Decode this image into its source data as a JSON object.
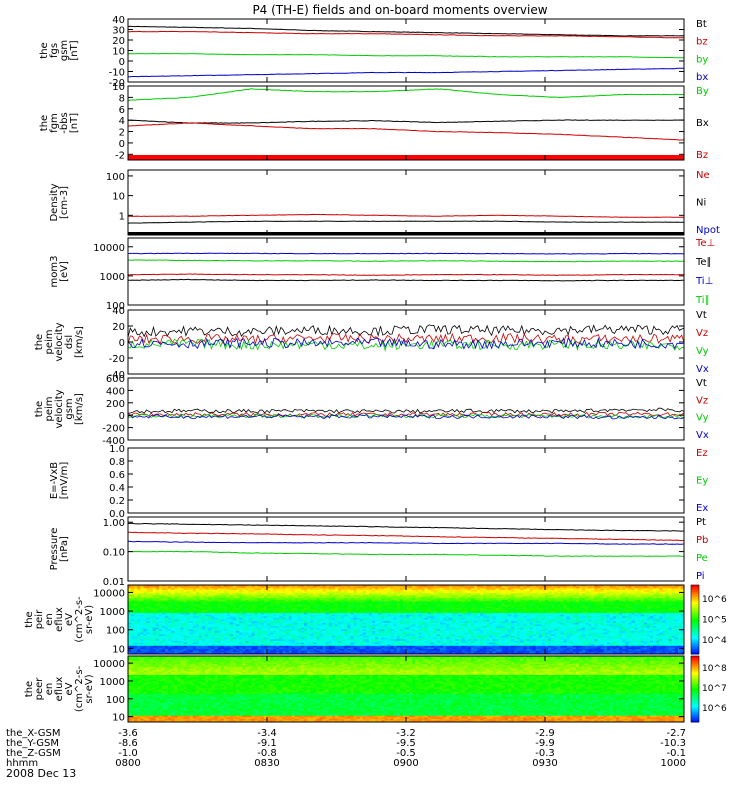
{
  "title": "P4 (TH-E) fields and on-board moments overview",
  "date_label": "2008 Dec 13",
  "chart_data": [
    {
      "type": "line",
      "ylabel": [
        "the",
        "fgs",
        "gsm",
        "[nT]"
      ],
      "ylim": [
        -20,
        40
      ],
      "ticks": [
        "-20",
        "-10",
        "0",
        "10",
        "20",
        "30",
        "40"
      ],
      "series": [
        {
          "name": "Bt",
          "color": "#000000",
          "values": [
            33,
            32,
            31,
            29,
            28,
            27,
            26,
            25,
            24,
            24
          ]
        },
        {
          "name": "bz",
          "color": "#cc0000",
          "values": [
            28,
            28,
            27,
            26,
            26,
            25,
            24,
            24,
            23,
            22
          ]
        },
        {
          "name": "by",
          "color": "#00cc00",
          "values": [
            7,
            7,
            6,
            6,
            5,
            5,
            4,
            4,
            4,
            3
          ]
        },
        {
          "name": "bx",
          "color": "#0000cc",
          "values": [
            -15,
            -14,
            -13,
            -12,
            -11,
            -11,
            -10,
            -9,
            -8,
            -7
          ]
        }
      ]
    },
    {
      "type": "line",
      "ylabel": [
        "the",
        "fgm",
        "-bbs",
        "[nT]"
      ],
      "ylim": [
        -3,
        10
      ],
      "ticks": [
        "-2",
        "0",
        "2",
        "4",
        "6",
        "8",
        "10"
      ],
      "series": [
        {
          "name": "By",
          "color": "#00cc00",
          "values": [
            7.5,
            8.0,
            9.5,
            9.0,
            9.0,
            9.5,
            8.5,
            8.0,
            8.5,
            8.5
          ]
        },
        {
          "name": "Bx",
          "color": "#000000",
          "values": [
            4.0,
            3.5,
            3.5,
            3.8,
            3.9,
            3.6,
            3.8,
            4.0,
            4.0,
            4.0
          ]
        },
        {
          "name": "Bz",
          "color": "#cc0000",
          "values": [
            3.0,
            3.5,
            3.0,
            2.5,
            2.5,
            2.0,
            1.8,
            1.5,
            1.0,
            0.5
          ]
        }
      ]
    },
    {
      "type": "line",
      "scale": "log",
      "ylabel": [
        "Density",
        "[cm-3]"
      ],
      "ylim": [
        0.1,
        200
      ],
      "ticks": [
        "1",
        "10",
        "100"
      ],
      "series": [
        {
          "name": "Ne",
          "color": "#cc0000",
          "values": [
            0.9,
            0.9,
            1.0,
            1.1,
            1.0,
            0.9,
            1.0,
            0.9,
            0.8,
            0.8
          ]
        },
        {
          "name": "Ni",
          "color": "#000000",
          "values": [
            0.4,
            0.45,
            0.5,
            0.5,
            0.5,
            0.5,
            0.5,
            0.45,
            0.45,
            0.45
          ]
        },
        {
          "name": "Npot",
          "color": "#0000cc",
          "values": [
            null,
            null,
            null,
            null,
            null,
            null,
            null,
            null,
            null,
            null
          ]
        }
      ]
    },
    {
      "type": "line",
      "scale": "log",
      "ylabel": [
        "mom3",
        "[eV]"
      ],
      "ylim": [
        100,
        20000
      ],
      "ticks": [
        "100",
        "1000",
        "10000"
      ],
      "series": [
        {
          "name": "Te⊥",
          "color": "#cc0000",
          "values": [
            1100,
            1150,
            1100,
            1100,
            1050,
            1100,
            1100,
            1050,
            1100,
            1100
          ]
        },
        {
          "name": "Te∥",
          "color": "#000000",
          "values": [
            700,
            750,
            700,
            700,
            720,
            700,
            700,
            680,
            700,
            700
          ]
        },
        {
          "name": "Ti⊥",
          "color": "#0000cc",
          "values": [
            5800,
            6000,
            5900,
            5800,
            5800,
            5900,
            5800,
            5700,
            5800,
            5800
          ]
        },
        {
          "name": "Ti∥",
          "color": "#00cc00",
          "values": [
            3500,
            3400,
            3300,
            3300,
            3200,
            3300,
            3200,
            3100,
            3200,
            3200
          ]
        }
      ]
    },
    {
      "type": "line",
      "ylabel": [
        "the",
        "peim",
        "velocity",
        "dsl",
        "[km/s]"
      ],
      "ylim": [
        -40,
        40
      ],
      "ticks": [
        "-40",
        "-20",
        "0",
        "20",
        "40"
      ],
      "series": [
        {
          "name": "Vt",
          "color": "#000000",
          "values": [
            12,
            14,
            13,
            15,
            14,
            16,
            14,
            15,
            16,
            15
          ]
        },
        {
          "name": "Vz",
          "color": "#cc0000",
          "values": [
            3,
            4,
            3,
            5,
            4,
            4,
            5,
            3,
            4,
            4
          ]
        },
        {
          "name": "Vy",
          "color": "#00cc00",
          "values": [
            -3,
            -2,
            -4,
            -3,
            -5,
            -3,
            -4,
            -3,
            -5,
            -4
          ]
        },
        {
          "name": "Vx",
          "color": "#0000cc",
          "values": [
            -1,
            -2,
            -1,
            -2,
            -1,
            -3,
            -2,
            -1,
            -2,
            -2
          ]
        }
      ]
    },
    {
      "type": "line",
      "ylabel": [
        "the",
        "peim",
        "velocity",
        "gsm",
        "[km/s]"
      ],
      "ylim": [
        -400,
        600
      ],
      "ticks": [
        "-400",
        "-200",
        "0",
        "200",
        "400",
        "600"
      ],
      "series": [
        {
          "name": "Vt",
          "color": "#000000",
          "values": [
            60,
            70,
            65,
            70,
            60,
            65,
            70,
            60,
            90,
            80
          ]
        },
        {
          "name": "Vz",
          "color": "#cc0000",
          "values": [
            10,
            15,
            10,
            12,
            10,
            12,
            15,
            10,
            20,
            15
          ]
        },
        {
          "name": "Vy",
          "color": "#00cc00",
          "values": [
            -10,
            -15,
            -10,
            -12,
            -10,
            -15,
            -10,
            -12,
            -20,
            -15
          ]
        },
        {
          "name": "Vx",
          "color": "#0000cc",
          "values": [
            -20,
            -25,
            -20,
            -22,
            -20,
            -25,
            -20,
            -22,
            -40,
            -30
          ]
        }
      ]
    },
    {
      "type": "line",
      "ylabel": [
        "E=-VxB",
        "[mV/m]"
      ],
      "ylim": [
        0,
        1
      ],
      "ticks": [
        "0.0",
        "0.2",
        "0.4",
        "0.6",
        "0.8",
        "1.0"
      ],
      "series": [
        {
          "name": "Ez",
          "color": "#cc0000",
          "values": []
        },
        {
          "name": "Ey",
          "color": "#00cc00",
          "values": []
        },
        {
          "name": "Ex",
          "color": "#0000cc",
          "values": []
        }
      ]
    },
    {
      "type": "line",
      "scale": "log",
      "ylabel": [
        "Pressure",
        "[nPa]"
      ],
      "ylim": [
        0.01,
        1.5
      ],
      "ticks": [
        "0.01",
        "0.10",
        "1.00"
      ],
      "series": [
        {
          "name": "Pt",
          "color": "#000000",
          "values": [
            0.9,
            0.85,
            0.8,
            0.75,
            0.7,
            0.65,
            0.6,
            0.55,
            0.52,
            0.5
          ]
        },
        {
          "name": "Pb",
          "color": "#cc0000",
          "values": [
            0.45,
            0.42,
            0.4,
            0.37,
            0.35,
            0.32,
            0.3,
            0.28,
            0.26,
            0.24
          ]
        },
        {
          "name": "Pe",
          "color": "#00cc00",
          "values": [
            0.1,
            0.1,
            0.09,
            0.085,
            0.08,
            0.08,
            0.075,
            0.07,
            0.07,
            0.07
          ]
        },
        {
          "name": "Pi",
          "color": "#0000cc",
          "values": [
            0.22,
            0.21,
            0.2,
            0.2,
            0.2,
            0.19,
            0.19,
            0.19,
            0.18,
            0.18
          ]
        }
      ]
    },
    {
      "type": "heatmap",
      "scale": "log",
      "ylabel": [
        "the",
        "peir",
        "en",
        "eflux",
        "eV",
        "(cm^2-s-",
        "sr-eV)"
      ],
      "ylim": [
        5,
        25000
      ],
      "ticks": [
        "10",
        "100",
        "1000",
        "10000"
      ],
      "colorbar_ticks": [
        "10^4",
        "10^5",
        "10^6"
      ],
      "colorbar_range": [
        3.3,
        6.7
      ]
    },
    {
      "type": "heatmap",
      "scale": "log",
      "ylabel": [
        "the",
        "peer",
        "en",
        "eflux",
        "eV",
        "(cm^2-s-",
        "sr-eV)"
      ],
      "ylim": [
        5,
        25000
      ],
      "ticks": [
        "10",
        "100",
        "1000",
        "10000"
      ],
      "colorbar_ticks": [
        "10^6",
        "10^7",
        "10^8"
      ],
      "colorbar_range": [
        5.3,
        8.6
      ]
    }
  ],
  "x_axis": {
    "rows": [
      {
        "label": "the_X-GSM",
        "values": [
          "-3.6",
          "-3.4",
          "-3.2",
          "-2.9",
          "-2.7"
        ]
      },
      {
        "label": "the_Y-GSM",
        "values": [
          "-8.6",
          "-9.1",
          "-9.5",
          "-9.9",
          "-10.3"
        ]
      },
      {
        "label": "the_Z-GSM",
        "values": [
          "-1.0",
          "-0.8",
          "-0.5",
          "-0.3",
          "-0.1"
        ]
      },
      {
        "label": "hhmm",
        "values": [
          "0800",
          "0830",
          "0900",
          "0930",
          "1000"
        ]
      }
    ]
  },
  "colors": {
    "red": "#cc0000",
    "green": "#00cc00",
    "blue": "#0000cc",
    "black": "#000000"
  }
}
